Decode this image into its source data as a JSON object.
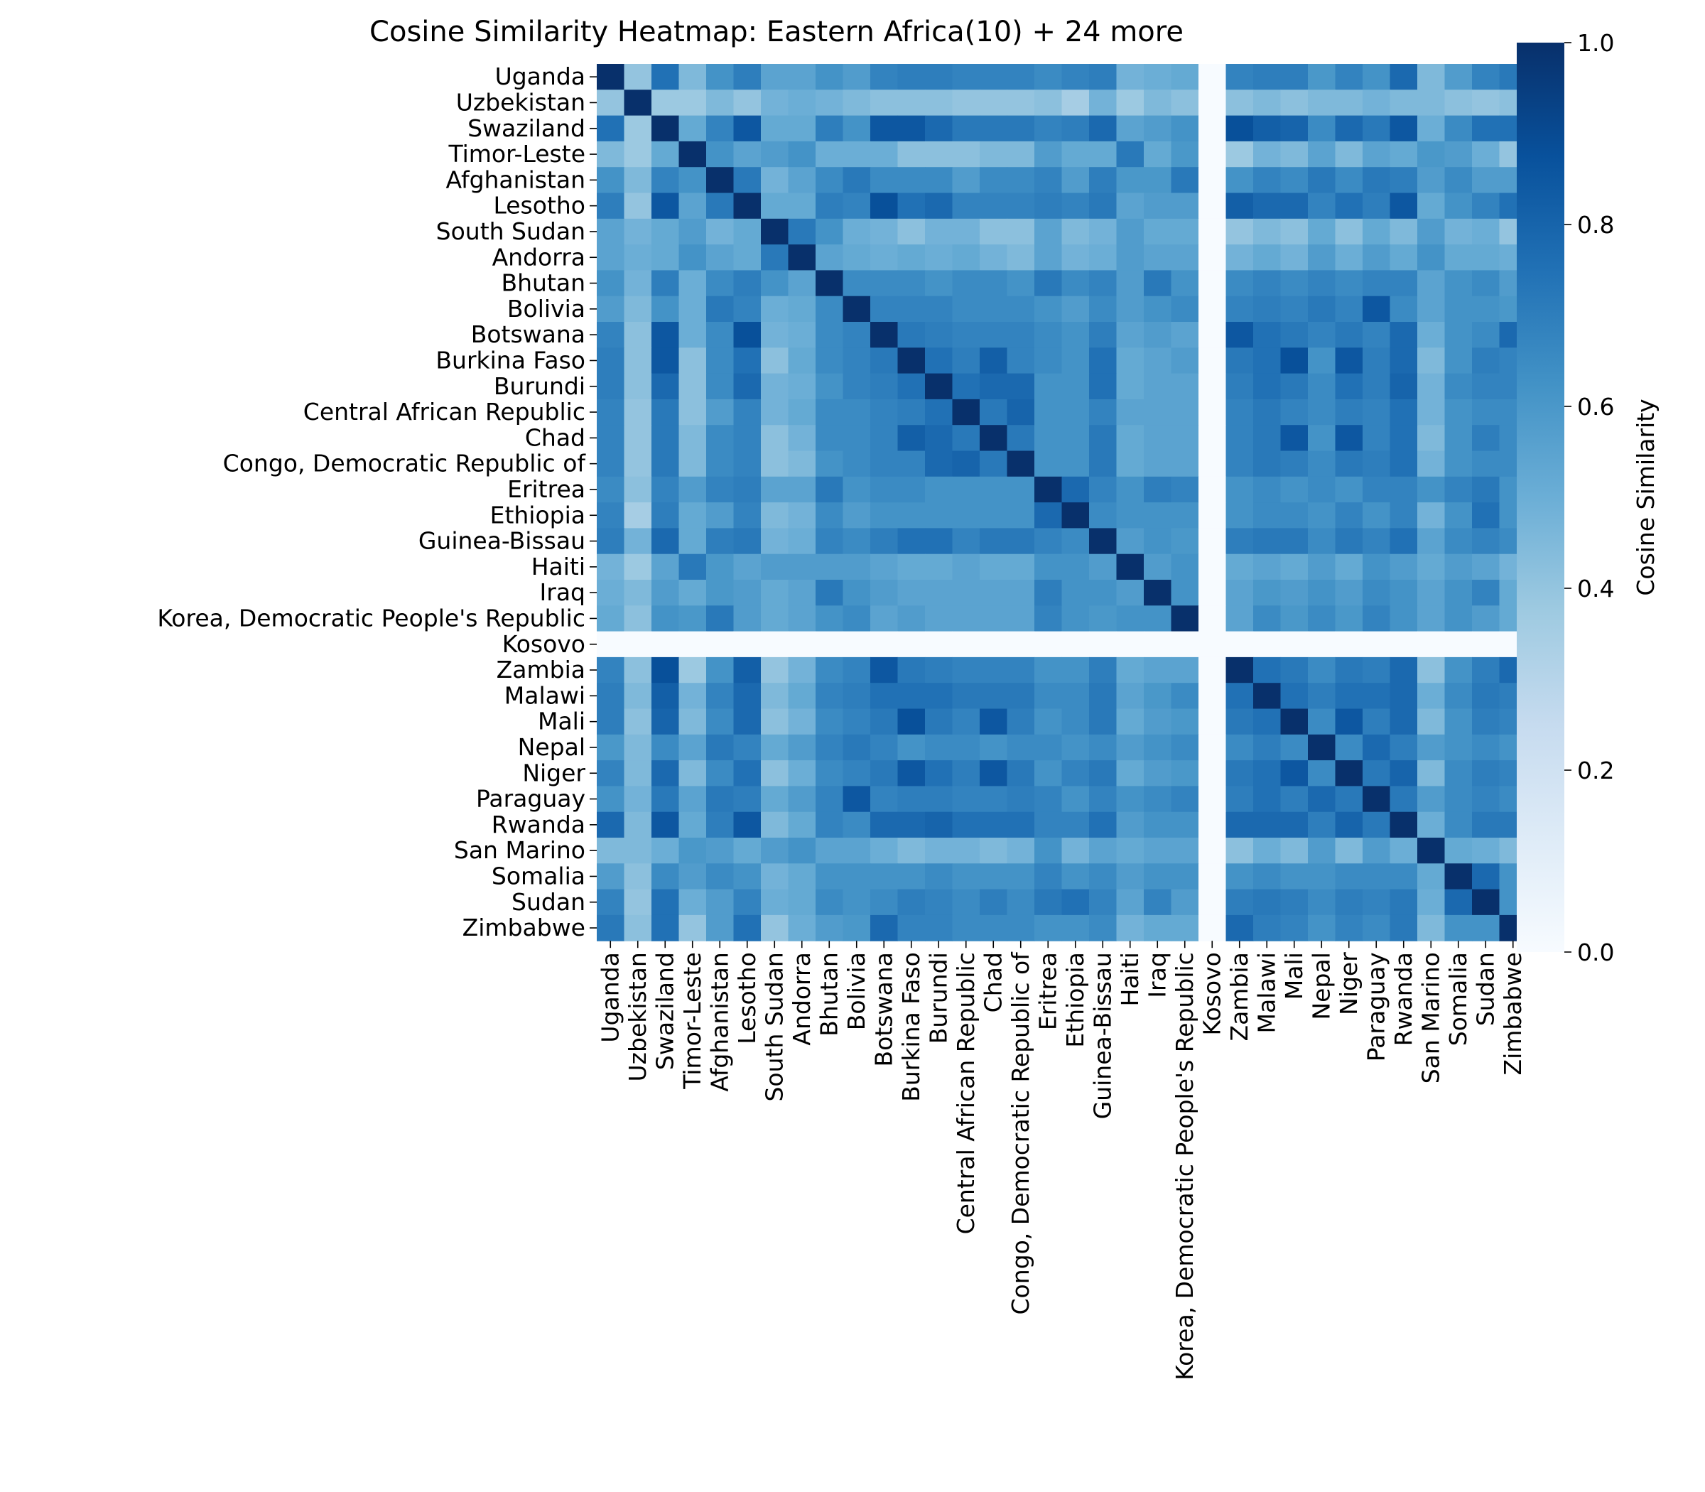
{
  "chart_data": {
    "type": "heatmap",
    "title": "Cosine Similarity Heatmap: Eastern Africa(10) + 24 more",
    "labels": [
      "Uganda",
      "Uzbekistan",
      "Swaziland",
      "Timor-Leste",
      "Afghanistan",
      "Lesotho",
      "South Sudan",
      "Andorra",
      "Bhutan",
      "Bolivia",
      "Botswana",
      "Burkina Faso",
      "Burundi",
      "Central African Republic",
      "Chad",
      "Congo, Democratic Republic of",
      "Eritrea",
      "Ethiopia",
      "Guinea-Bissau",
      "Haiti",
      "Iraq",
      "Korea, Democratic People's Republic",
      "Kosovo",
      "Zambia",
      "Malawi",
      "Mali",
      "Nepal",
      "Niger",
      "Paraguay",
      "Rwanda",
      "San Marino",
      "Somalia",
      "Sudan",
      "Zimbabwe"
    ],
    "values": [
      [
        1.0,
        0.4,
        0.75,
        0.45,
        0.62,
        0.7,
        0.55,
        0.55,
        0.62,
        0.58,
        0.68,
        0.7,
        0.7,
        0.68,
        0.68,
        0.68,
        0.65,
        0.68,
        0.7,
        0.48,
        0.5,
        0.52,
        0.0,
        0.68,
        0.7,
        0.7,
        0.6,
        0.68,
        0.62,
        0.78,
        0.45,
        0.58,
        0.68,
        0.72
      ],
      [
        0.4,
        1.0,
        0.38,
        0.38,
        0.45,
        0.4,
        0.48,
        0.5,
        0.48,
        0.45,
        0.42,
        0.42,
        0.42,
        0.4,
        0.4,
        0.4,
        0.42,
        0.35,
        0.48,
        0.38,
        0.45,
        0.42,
        0.0,
        0.42,
        0.45,
        0.42,
        0.45,
        0.45,
        0.48,
        0.45,
        0.45,
        0.42,
        0.4,
        0.42
      ],
      [
        0.75,
        0.38,
        1.0,
        0.52,
        0.68,
        0.85,
        0.52,
        0.52,
        0.7,
        0.62,
        0.85,
        0.85,
        0.78,
        0.72,
        0.72,
        0.72,
        0.68,
        0.7,
        0.78,
        0.55,
        0.58,
        0.62,
        0.0,
        0.88,
        0.82,
        0.8,
        0.65,
        0.78,
        0.72,
        0.85,
        0.5,
        0.65,
        0.75,
        0.75
      ],
      [
        0.45,
        0.38,
        0.52,
        1.0,
        0.62,
        0.55,
        0.58,
        0.62,
        0.5,
        0.5,
        0.5,
        0.42,
        0.42,
        0.42,
        0.45,
        0.45,
        0.58,
        0.52,
        0.52,
        0.72,
        0.52,
        0.6,
        0.0,
        0.38,
        0.48,
        0.45,
        0.55,
        0.45,
        0.55,
        0.52,
        0.6,
        0.58,
        0.5,
        0.4
      ],
      [
        0.62,
        0.45,
        0.68,
        0.62,
        1.0,
        0.72,
        0.48,
        0.55,
        0.65,
        0.72,
        0.65,
        0.65,
        0.65,
        0.58,
        0.65,
        0.65,
        0.68,
        0.58,
        0.7,
        0.6,
        0.6,
        0.72,
        0.0,
        0.62,
        0.68,
        0.65,
        0.72,
        0.65,
        0.72,
        0.7,
        0.58,
        0.65,
        0.58,
        0.58
      ],
      [
        0.7,
        0.4,
        0.85,
        0.55,
        0.72,
        1.0,
        0.52,
        0.52,
        0.7,
        0.68,
        0.88,
        0.75,
        0.78,
        0.68,
        0.68,
        0.68,
        0.7,
        0.68,
        0.72,
        0.55,
        0.58,
        0.58,
        0.0,
        0.82,
        0.78,
        0.78,
        0.68,
        0.75,
        0.7,
        0.85,
        0.52,
        0.62,
        0.68,
        0.75
      ],
      [
        0.55,
        0.48,
        0.52,
        0.58,
        0.48,
        0.52,
        1.0,
        0.72,
        0.62,
        0.5,
        0.48,
        0.42,
        0.48,
        0.48,
        0.42,
        0.42,
        0.55,
        0.45,
        0.48,
        0.58,
        0.52,
        0.52,
        0.0,
        0.4,
        0.45,
        0.42,
        0.52,
        0.42,
        0.52,
        0.45,
        0.58,
        0.48,
        0.5,
        0.4
      ],
      [
        0.55,
        0.5,
        0.52,
        0.62,
        0.55,
        0.52,
        0.72,
        1.0,
        0.55,
        0.52,
        0.5,
        0.52,
        0.5,
        0.52,
        0.48,
        0.45,
        0.55,
        0.48,
        0.5,
        0.58,
        0.55,
        0.55,
        0.0,
        0.48,
        0.52,
        0.48,
        0.58,
        0.5,
        0.58,
        0.52,
        0.62,
        0.52,
        0.52,
        0.5
      ],
      [
        0.62,
        0.48,
        0.7,
        0.5,
        0.65,
        0.7,
        0.62,
        0.55,
        1.0,
        0.65,
        0.65,
        0.65,
        0.62,
        0.65,
        0.65,
        0.62,
        0.72,
        0.65,
        0.68,
        0.58,
        0.72,
        0.62,
        0.0,
        0.65,
        0.68,
        0.65,
        0.68,
        0.65,
        0.68,
        0.68,
        0.55,
        0.62,
        0.65,
        0.58
      ],
      [
        0.58,
        0.45,
        0.62,
        0.5,
        0.72,
        0.68,
        0.5,
        0.52,
        0.65,
        1.0,
        0.68,
        0.68,
        0.68,
        0.65,
        0.65,
        0.65,
        0.62,
        0.58,
        0.65,
        0.58,
        0.62,
        0.65,
        0.0,
        0.68,
        0.7,
        0.68,
        0.72,
        0.68,
        0.85,
        0.65,
        0.55,
        0.62,
        0.62,
        0.6
      ],
      [
        0.68,
        0.42,
        0.85,
        0.5,
        0.65,
        0.88,
        0.48,
        0.5,
        0.65,
        0.68,
        1.0,
        0.72,
        0.7,
        0.68,
        0.68,
        0.68,
        0.65,
        0.62,
        0.7,
        0.55,
        0.58,
        0.55,
        0.0,
        0.85,
        0.75,
        0.72,
        0.68,
        0.72,
        0.68,
        0.78,
        0.5,
        0.62,
        0.65,
        0.78
      ],
      [
        0.7,
        0.42,
        0.85,
        0.42,
        0.65,
        0.75,
        0.42,
        0.52,
        0.65,
        0.68,
        0.72,
        1.0,
        0.75,
        0.7,
        0.82,
        0.68,
        0.65,
        0.62,
        0.75,
        0.52,
        0.55,
        0.58,
        0.0,
        0.72,
        0.75,
        0.88,
        0.62,
        0.85,
        0.7,
        0.78,
        0.45,
        0.62,
        0.7,
        0.68
      ],
      [
        0.7,
        0.42,
        0.78,
        0.42,
        0.65,
        0.78,
        0.48,
        0.5,
        0.62,
        0.68,
        0.7,
        0.75,
        1.0,
        0.75,
        0.78,
        0.78,
        0.62,
        0.62,
        0.75,
        0.52,
        0.55,
        0.55,
        0.0,
        0.7,
        0.75,
        0.72,
        0.65,
        0.75,
        0.7,
        0.8,
        0.48,
        0.65,
        0.68,
        0.68
      ],
      [
        0.68,
        0.4,
        0.72,
        0.42,
        0.58,
        0.68,
        0.48,
        0.52,
        0.65,
        0.65,
        0.68,
        0.7,
        0.75,
        1.0,
        0.72,
        0.8,
        0.62,
        0.62,
        0.68,
        0.55,
        0.55,
        0.55,
        0.0,
        0.68,
        0.72,
        0.68,
        0.65,
        0.7,
        0.68,
        0.75,
        0.48,
        0.62,
        0.65,
        0.65
      ],
      [
        0.68,
        0.4,
        0.72,
        0.45,
        0.65,
        0.68,
        0.42,
        0.48,
        0.65,
        0.65,
        0.68,
        0.82,
        0.78,
        0.72,
        1.0,
        0.72,
        0.62,
        0.62,
        0.72,
        0.52,
        0.55,
        0.55,
        0.0,
        0.68,
        0.72,
        0.85,
        0.62,
        0.85,
        0.68,
        0.75,
        0.45,
        0.62,
        0.7,
        0.65
      ],
      [
        0.68,
        0.4,
        0.72,
        0.45,
        0.65,
        0.68,
        0.42,
        0.45,
        0.62,
        0.65,
        0.68,
        0.68,
        0.78,
        0.8,
        0.72,
        1.0,
        0.62,
        0.62,
        0.72,
        0.52,
        0.55,
        0.55,
        0.0,
        0.68,
        0.72,
        0.7,
        0.65,
        0.72,
        0.7,
        0.75,
        0.48,
        0.62,
        0.65,
        0.65
      ],
      [
        0.65,
        0.42,
        0.68,
        0.58,
        0.68,
        0.7,
        0.55,
        0.55,
        0.72,
        0.62,
        0.65,
        0.65,
        0.62,
        0.62,
        0.62,
        0.62,
        1.0,
        0.78,
        0.68,
        0.62,
        0.7,
        0.68,
        0.0,
        0.62,
        0.65,
        0.62,
        0.65,
        0.62,
        0.68,
        0.68,
        0.62,
        0.68,
        0.72,
        0.62
      ],
      [
        0.68,
        0.35,
        0.7,
        0.52,
        0.58,
        0.68,
        0.45,
        0.48,
        0.65,
        0.58,
        0.62,
        0.62,
        0.62,
        0.62,
        0.62,
        0.62,
        0.78,
        1.0,
        0.65,
        0.62,
        0.62,
        0.62,
        0.0,
        0.62,
        0.65,
        0.65,
        0.62,
        0.68,
        0.62,
        0.68,
        0.48,
        0.62,
        0.75,
        0.62
      ],
      [
        0.7,
        0.48,
        0.78,
        0.52,
        0.7,
        0.72,
        0.48,
        0.5,
        0.68,
        0.65,
        0.7,
        0.75,
        0.75,
        0.68,
        0.72,
        0.72,
        0.68,
        0.65,
        1.0,
        0.58,
        0.62,
        0.6,
        0.0,
        0.7,
        0.72,
        0.72,
        0.65,
        0.72,
        0.68,
        0.75,
        0.55,
        0.65,
        0.68,
        0.65
      ],
      [
        0.48,
        0.38,
        0.55,
        0.72,
        0.6,
        0.55,
        0.58,
        0.58,
        0.58,
        0.58,
        0.55,
        0.52,
        0.52,
        0.55,
        0.52,
        0.52,
        0.62,
        0.62,
        0.58,
        1.0,
        0.58,
        0.62,
        0.0,
        0.52,
        0.55,
        0.52,
        0.58,
        0.52,
        0.62,
        0.58,
        0.52,
        0.58,
        0.55,
        0.48
      ],
      [
        0.5,
        0.45,
        0.58,
        0.52,
        0.6,
        0.58,
        0.52,
        0.55,
        0.72,
        0.62,
        0.58,
        0.55,
        0.55,
        0.55,
        0.55,
        0.55,
        0.7,
        0.62,
        0.62,
        0.58,
        1.0,
        0.62,
        0.0,
        0.55,
        0.6,
        0.58,
        0.62,
        0.58,
        0.65,
        0.62,
        0.55,
        0.62,
        0.68,
        0.52
      ],
      [
        0.52,
        0.42,
        0.62,
        0.6,
        0.72,
        0.58,
        0.52,
        0.55,
        0.62,
        0.65,
        0.55,
        0.58,
        0.55,
        0.55,
        0.55,
        0.55,
        0.68,
        0.62,
        0.6,
        0.62,
        0.62,
        1.0,
        0.0,
        0.55,
        0.65,
        0.6,
        0.65,
        0.6,
        0.68,
        0.62,
        0.55,
        0.62,
        0.58,
        0.52
      ],
      [
        0.0,
        0.0,
        0.0,
        0.0,
        0.0,
        0.0,
        0.0,
        0.0,
        0.0,
        0.0,
        0.0,
        0.0,
        0.0,
        0.0,
        0.0,
        0.0,
        0.0,
        0.0,
        0.0,
        0.0,
        0.0,
        0.0,
        0.0,
        0.0,
        0.0,
        0.0,
        0.0,
        0.0,
        0.0,
        0.0,
        0.0,
        0.0,
        0.0,
        0.0
      ],
      [
        0.68,
        0.42,
        0.88,
        0.38,
        0.62,
        0.82,
        0.4,
        0.48,
        0.65,
        0.68,
        0.85,
        0.72,
        0.7,
        0.68,
        0.68,
        0.68,
        0.62,
        0.62,
        0.7,
        0.52,
        0.55,
        0.55,
        0.0,
        1.0,
        0.75,
        0.72,
        0.65,
        0.72,
        0.7,
        0.78,
        0.42,
        0.62,
        0.7,
        0.78
      ],
      [
        0.7,
        0.45,
        0.82,
        0.48,
        0.68,
        0.78,
        0.45,
        0.52,
        0.68,
        0.7,
        0.75,
        0.75,
        0.75,
        0.72,
        0.72,
        0.72,
        0.65,
        0.65,
        0.72,
        0.55,
        0.6,
        0.65,
        0.0,
        0.75,
        1.0,
        0.75,
        0.7,
        0.75,
        0.75,
        0.78,
        0.5,
        0.65,
        0.72,
        0.7
      ],
      [
        0.7,
        0.42,
        0.8,
        0.45,
        0.65,
        0.78,
        0.42,
        0.48,
        0.65,
        0.68,
        0.72,
        0.88,
        0.72,
        0.68,
        0.85,
        0.7,
        0.62,
        0.65,
        0.72,
        0.52,
        0.58,
        0.6,
        0.0,
        0.72,
        0.75,
        1.0,
        0.65,
        0.85,
        0.7,
        0.78,
        0.45,
        0.62,
        0.7,
        0.68
      ],
      [
        0.6,
        0.45,
        0.65,
        0.55,
        0.72,
        0.68,
        0.52,
        0.58,
        0.68,
        0.72,
        0.68,
        0.62,
        0.65,
        0.65,
        0.62,
        0.65,
        0.65,
        0.62,
        0.65,
        0.58,
        0.62,
        0.65,
        0.0,
        0.65,
        0.7,
        0.65,
        1.0,
        0.65,
        0.78,
        0.7,
        0.58,
        0.62,
        0.65,
        0.62
      ],
      [
        0.68,
        0.45,
        0.78,
        0.45,
        0.65,
        0.75,
        0.42,
        0.5,
        0.65,
        0.68,
        0.72,
        0.85,
        0.75,
        0.7,
        0.85,
        0.72,
        0.62,
        0.68,
        0.72,
        0.52,
        0.58,
        0.6,
        0.0,
        0.72,
        0.75,
        0.85,
        0.65,
        1.0,
        0.72,
        0.8,
        0.45,
        0.65,
        0.7,
        0.68
      ],
      [
        0.62,
        0.48,
        0.72,
        0.55,
        0.72,
        0.7,
        0.52,
        0.58,
        0.68,
        0.85,
        0.68,
        0.7,
        0.7,
        0.68,
        0.68,
        0.7,
        0.68,
        0.62,
        0.68,
        0.62,
        0.65,
        0.68,
        0.0,
        0.7,
        0.75,
        0.7,
        0.78,
        0.72,
        1.0,
        0.72,
        0.58,
        0.65,
        0.68,
        0.65
      ],
      [
        0.78,
        0.45,
        0.85,
        0.52,
        0.7,
        0.85,
        0.45,
        0.52,
        0.68,
        0.65,
        0.78,
        0.78,
        0.8,
        0.75,
        0.75,
        0.75,
        0.68,
        0.68,
        0.75,
        0.58,
        0.62,
        0.62,
        0.0,
        0.78,
        0.78,
        0.78,
        0.7,
        0.8,
        0.72,
        1.0,
        0.5,
        0.65,
        0.72,
        0.72
      ],
      [
        0.45,
        0.45,
        0.5,
        0.6,
        0.58,
        0.52,
        0.58,
        0.62,
        0.55,
        0.55,
        0.5,
        0.45,
        0.48,
        0.48,
        0.45,
        0.48,
        0.62,
        0.48,
        0.55,
        0.52,
        0.55,
        0.55,
        0.0,
        0.42,
        0.5,
        0.45,
        0.58,
        0.45,
        0.58,
        0.5,
        1.0,
        0.52,
        0.5,
        0.45
      ],
      [
        0.58,
        0.42,
        0.65,
        0.58,
        0.65,
        0.62,
        0.48,
        0.52,
        0.62,
        0.62,
        0.62,
        0.62,
        0.65,
        0.62,
        0.62,
        0.62,
        0.68,
        0.62,
        0.65,
        0.58,
        0.62,
        0.62,
        0.0,
        0.62,
        0.65,
        0.62,
        0.62,
        0.65,
        0.65,
        0.65,
        0.52,
        1.0,
        0.78,
        0.62
      ],
      [
        0.68,
        0.4,
        0.75,
        0.5,
        0.58,
        0.68,
        0.5,
        0.52,
        0.65,
        0.62,
        0.65,
        0.7,
        0.68,
        0.65,
        0.7,
        0.65,
        0.72,
        0.75,
        0.68,
        0.55,
        0.68,
        0.58,
        0.0,
        0.7,
        0.72,
        0.7,
        0.65,
        0.7,
        0.68,
        0.72,
        0.5,
        0.78,
        1.0,
        0.62
      ],
      [
        0.72,
        0.42,
        0.75,
        0.4,
        0.58,
        0.75,
        0.4,
        0.5,
        0.58,
        0.6,
        0.78,
        0.68,
        0.68,
        0.65,
        0.65,
        0.65,
        0.62,
        0.62,
        0.65,
        0.48,
        0.52,
        0.52,
        0.0,
        0.78,
        0.7,
        0.68,
        0.62,
        0.68,
        0.65,
        0.72,
        0.45,
        0.62,
        0.62,
        1.0
      ]
    ],
    "colormap": "Blues",
    "vmin": 0.0,
    "vmax": 1.0,
    "colorbar": {
      "label": "Cosine Similarity",
      "ticks": [
        "0.0",
        "0.2",
        "0.4",
        "0.6",
        "0.8",
        "1.0"
      ]
    },
    "legend": "colorbar-right"
  }
}
